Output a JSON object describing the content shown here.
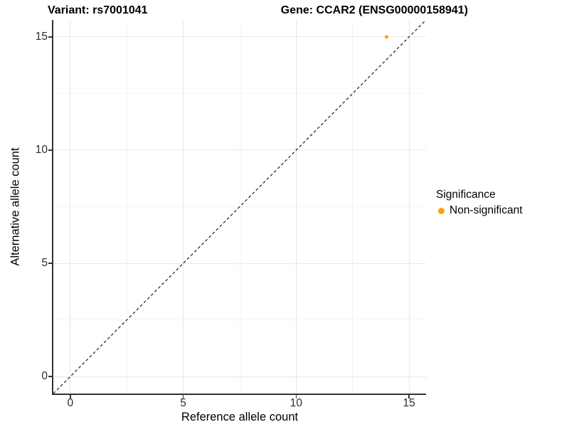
{
  "chart_data": {
    "type": "scatter",
    "title": "Variant: rs7001041    Gene: CCAR2 (ENSG00000158941)",
    "title_parts": {
      "left": "Variant: rs7001041",
      "right": "Gene: CCAR2 (ENSG00000158941)"
    },
    "xlabel": "Reference allele count",
    "ylabel": "Alternative allele count",
    "xlim": [
      -0.75,
      15.75
    ],
    "ylim": [
      -0.75,
      15.75
    ],
    "x_ticks": [
      0,
      5,
      10,
      15
    ],
    "y_ticks": [
      0,
      5,
      10,
      15
    ],
    "x_minor_ticks": [
      2.5,
      7.5,
      12.5
    ],
    "y_minor_ticks": [
      2.5,
      7.5,
      12.5
    ],
    "grid": true,
    "points": [
      {
        "x": 14,
        "y": 15,
        "series": "Non-significant",
        "color": "#FAA21B"
      }
    ],
    "reference_line": {
      "kind": "identity",
      "style": "dashed",
      "color": "#1a1a1a",
      "from": [
        -0.75,
        -0.75
      ],
      "to": [
        15.75,
        15.75
      ]
    },
    "legend": {
      "title": "Significance",
      "position": "right",
      "entries": [
        {
          "label": "Non-significant",
          "color": "#FAA21B",
          "marker": "circle"
        }
      ]
    },
    "colors": {
      "background": "#ffffff",
      "grid_major": "#e7e7e7",
      "grid_minor": "#f3f3f3",
      "axis_line": "#333333",
      "tick_text": "#2e2e2e",
      "title_text": "#000000"
    }
  }
}
